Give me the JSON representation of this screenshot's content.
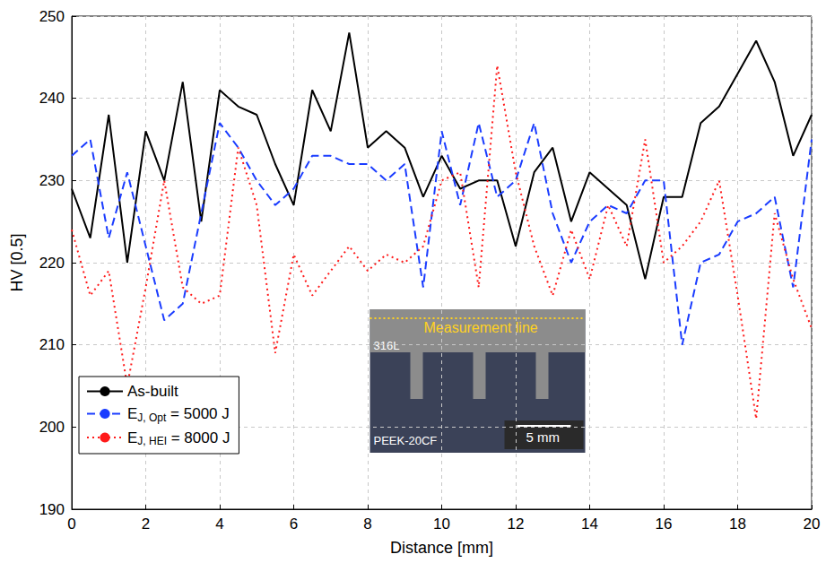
{
  "chart_data": {
    "type": "line",
    "x_label": "Distance [mm]",
    "y_label": "HV [0.5]",
    "x": [
      0,
      0.5,
      1,
      1.5,
      2,
      2.5,
      3,
      3.5,
      4,
      4.5,
      5,
      5.5,
      6,
      6.5,
      7,
      7.5,
      8,
      8.5,
      9,
      9.5,
      10,
      10.5,
      11,
      11.5,
      12,
      12.5,
      13,
      13.5,
      14,
      14.5,
      15,
      15.5,
      16,
      16.5,
      17,
      17.5,
      18,
      18.5,
      19,
      19.5,
      20
    ],
    "series": [
      {
        "name": "As-built",
        "color": "#000000",
        "line_style": "solid",
        "marker": "none",
        "values": [
          229,
          223,
          238,
          220,
          236,
          230,
          242,
          225,
          241,
          239,
          238,
          232,
          227,
          241,
          236,
          248,
          234,
          236,
          234,
          228,
          233,
          229,
          230,
          230,
          222,
          231,
          234,
          225,
          231,
          229,
          227,
          218,
          228,
          228,
          237,
          239,
          243,
          247,
          242,
          233,
          238
        ]
      },
      {
        "name": "EJ, Opt = 5000 J",
        "color": "#1a3cff",
        "line_style": "dashed",
        "marker": "none",
        "values": [
          233,
          235,
          223,
          231,
          222,
          213,
          215,
          226,
          237,
          234,
          230,
          227,
          229,
          233,
          233,
          232,
          232,
          230,
          232,
          217,
          236,
          227,
          237,
          228,
          230,
          237,
          226,
          220,
          225,
          227,
          226,
          230,
          230,
          210,
          220,
          221,
          225,
          226,
          228,
          217,
          235
        ]
      },
      {
        "name": "EJ, HEI = 8000 J",
        "color": "#ff1a1a",
        "line_style": "dotted",
        "marker": "none",
        "values": [
          224,
          216,
          219,
          205,
          217,
          230,
          217,
          215,
          216,
          234,
          227,
          209,
          221,
          216,
          219,
          222,
          219,
          221,
          220,
          222,
          230,
          231,
          217,
          244,
          231,
          222,
          216,
          224,
          218,
          227,
          222,
          235,
          220,
          222,
          225,
          230,
          216,
          201,
          226,
          218,
          212
        ]
      }
    ],
    "xlim": [
      0,
      20
    ],
    "xticks": [
      0,
      2,
      4,
      6,
      8,
      10,
      12,
      14,
      16,
      18,
      20
    ],
    "ylim": [
      190,
      250
    ],
    "yticks": [
      190,
      200,
      210,
      220,
      230,
      240,
      250
    ],
    "grid": true,
    "legend": "lower left",
    "annotations": [
      "316L",
      "Measurement line",
      "PEEK-20CF",
      "5 mm"
    ]
  }
}
